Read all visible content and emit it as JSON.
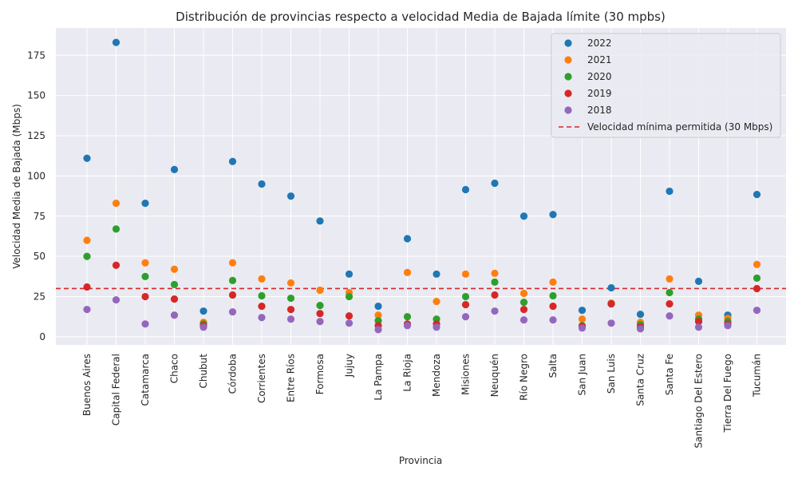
{
  "chart_data": {
    "type": "scatter",
    "title": "Distribución de provincias respecto a velocidad Media de Bajada límite (30 mpbs)",
    "xlabel": "Provincia",
    "ylabel": "Velocidad Media de Bajada (Mbps)",
    "ylim": [
      -5,
      192
    ],
    "yticks": [
      0,
      25,
      50,
      75,
      100,
      125,
      150,
      175
    ],
    "grid": true,
    "legend_position": "top-right",
    "categories": [
      "Buenos Aires",
      "Capital Federal",
      "Catamarca",
      "Chaco",
      "Chubut",
      "Córdoba",
      "Corrientes",
      "Entre Ríos",
      "Formosa",
      "Jujuy",
      "La Pampa",
      "La Rioja",
      "Mendoza",
      "Misiones",
      "Neuquén",
      "Río Negro",
      "Salta",
      "San Juan",
      "San Luis",
      "Santa Cruz",
      "Santa Fe",
      "Santiago Del Estero",
      "Tierra Del Fuego",
      "Tucumán"
    ],
    "series": [
      {
        "name": "2022",
        "color": "#1f77b4",
        "values": [
          111,
          183,
          83,
          104,
          16,
          109,
          95,
          87.5,
          72,
          39,
          19,
          61,
          39,
          91.5,
          95.5,
          75,
          76,
          16.5,
          30.5,
          14,
          90.5,
          34.5,
          13.5,
          88.5
        ]
      },
      {
        "name": "2021",
        "color": "#ff7f0e",
        "values": [
          60,
          83,
          46,
          42,
          9,
          46,
          36,
          33.5,
          29,
          27.5,
          13.5,
          40,
          22,
          39,
          39.5,
          27,
          34,
          11,
          21,
          9,
          36,
          13.5,
          11.5,
          45
        ]
      },
      {
        "name": "2020",
        "color": "#2ca02c",
        "values": [
          50,
          67,
          37.5,
          32.5,
          8,
          35,
          25.5,
          24,
          19.5,
          25,
          10,
          12.5,
          11,
          25,
          34,
          21.5,
          25.5,
          7,
          20.5,
          7.5,
          27.5,
          11,
          9.5,
          36.5
        ]
      },
      {
        "name": "2019",
        "color": "#d62728",
        "values": [
          31,
          44.5,
          25,
          23.5,
          7,
          26,
          19,
          17,
          14.5,
          13,
          7,
          8,
          8,
          20,
          26,
          17,
          19,
          6.5,
          20.5,
          6,
          20.5,
          9.5,
          8,
          30
        ]
      },
      {
        "name": "2018",
        "color": "#9467bd",
        "values": [
          17,
          23,
          8,
          13.5,
          6,
          15.5,
          12,
          11,
          9.5,
          8.5,
          4.5,
          7,
          6,
          12.5,
          16,
          10.5,
          10.5,
          5.5,
          8.5,
          5,
          13,
          6,
          7,
          16.5
        ]
      }
    ],
    "reference_line": {
      "label": "Velocidad mínima permitida (30 Mbps)",
      "value": 30,
      "color": "#d62728",
      "style": "dashed"
    }
  }
}
